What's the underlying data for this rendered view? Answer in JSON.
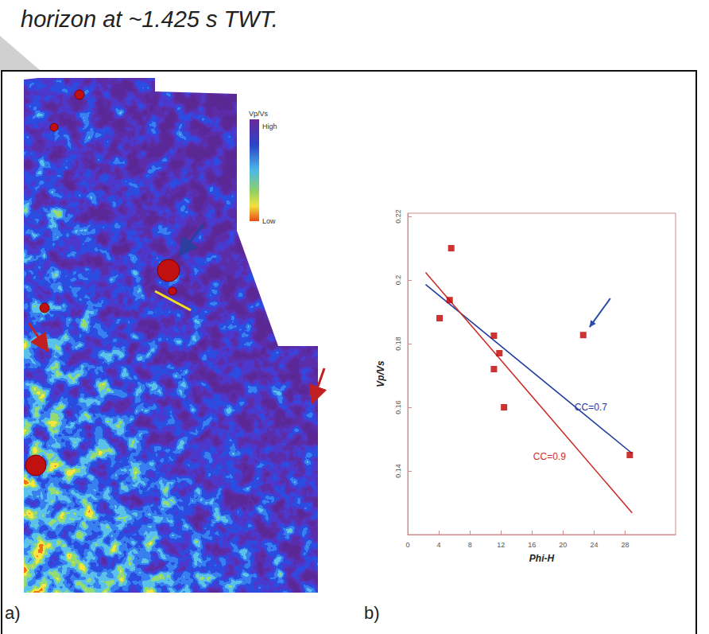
{
  "caption": "horizon at ~1.425 s TWT.",
  "map": {
    "letter": "a)",
    "colorbar": {
      "title": "Vp/Vs",
      "max_label": "High",
      "min_label": "Low"
    }
  },
  "chart_data": {
    "letter": "b)",
    "type": "scatter",
    "x_label": "Phi-H",
    "y_label": "Vp/Vs",
    "x": [
      5.6,
      5.4,
      4.1,
      11.1,
      11.8,
      11.1,
      12.4,
      22.6,
      28.6
    ],
    "values": [
      0.21,
      0.1937,
      0.188,
      0.1825,
      0.177,
      0.172,
      0.16,
      0.1827,
      0.145
    ],
    "color": "#c00000",
    "marker": "square",
    "xlim": [
      0,
      34.5
    ],
    "ylim": [
      0.12,
      0.221
    ],
    "xticks": [
      0,
      4,
      8,
      12,
      16,
      20,
      24,
      28
    ],
    "yticks": [
      0.14,
      0.16,
      0.18,
      0.2,
      0.22
    ],
    "grid": false,
    "lines": [
      {
        "name": "CC=0.7",
        "color": "#1f3d9e",
        "x": [
          2.3,
          28.9
        ],
        "values": [
          0.1986,
          0.1455
        ]
      },
      {
        "name": "CC=0.9",
        "color": "#c8302a",
        "x": [
          2.3,
          28.9
        ],
        "values": [
          0.2024,
          0.1268
        ]
      }
    ]
  }
}
